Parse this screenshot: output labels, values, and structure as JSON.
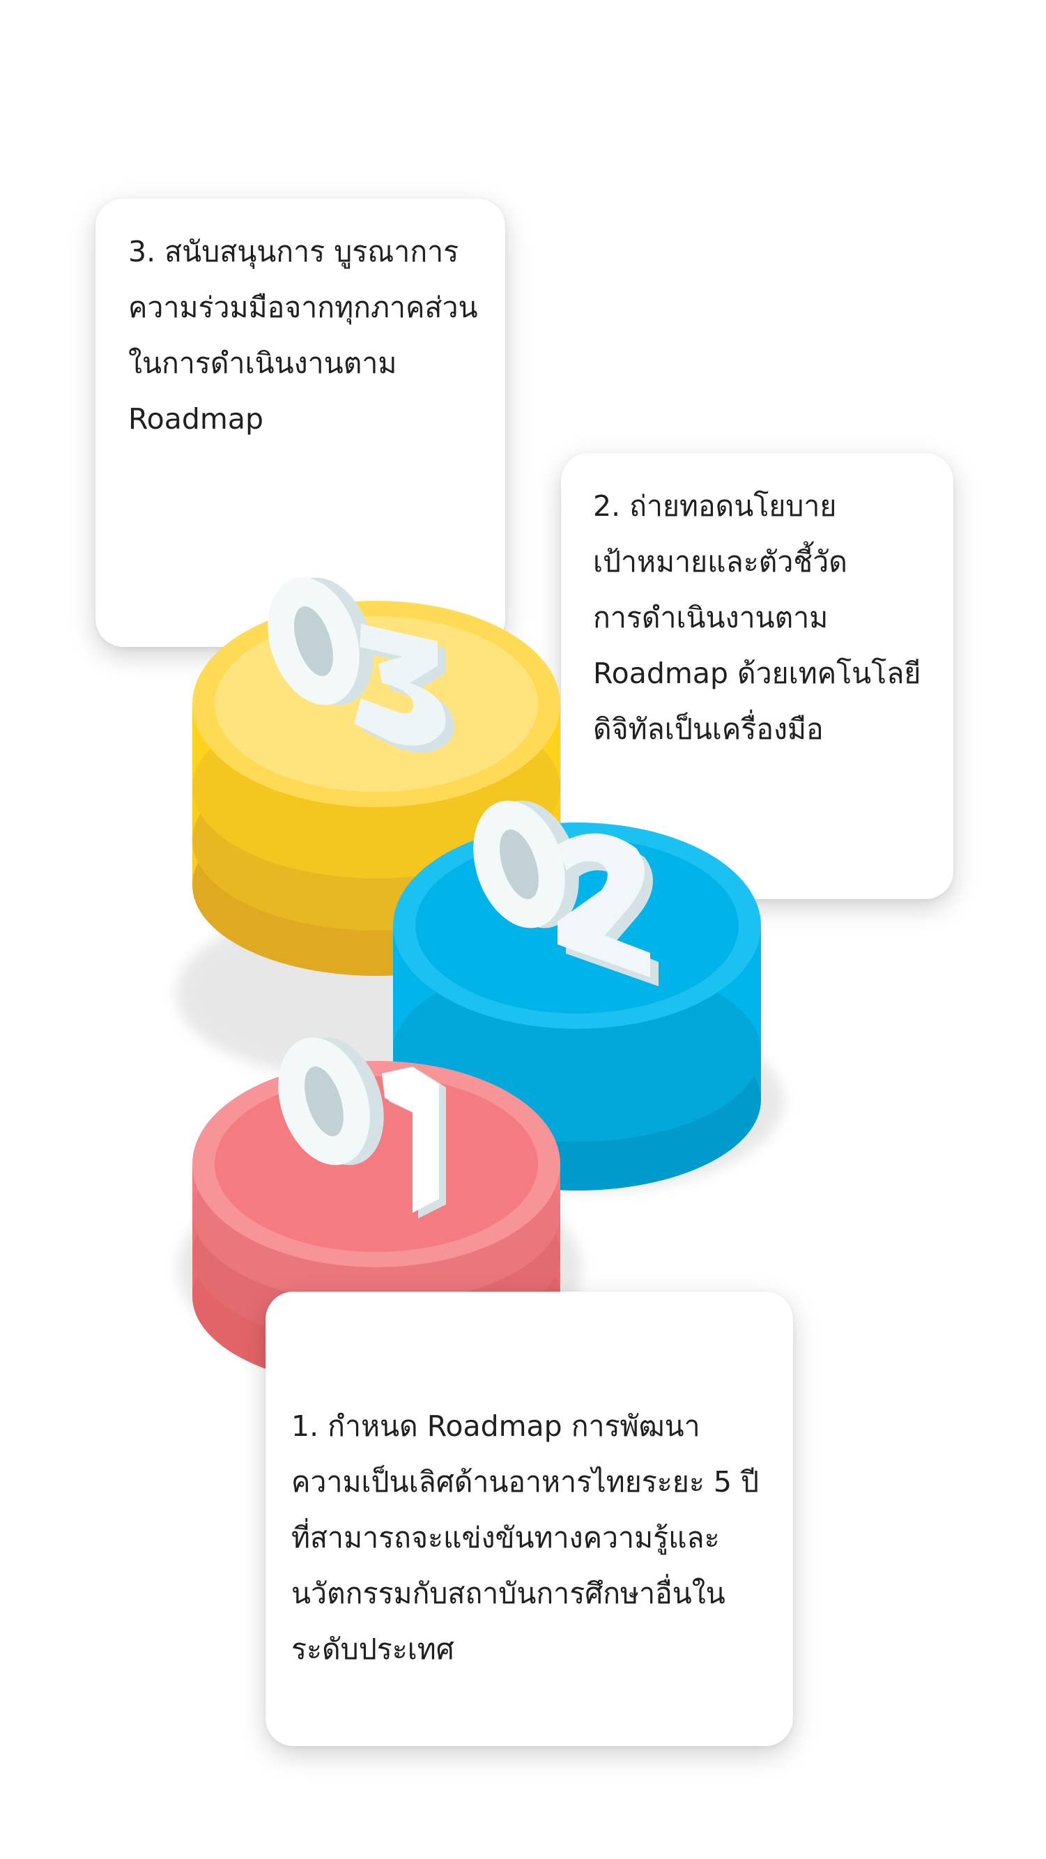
{
  "steps": [
    {
      "number": "03",
      "text": "3. สนับสนุนการ บูรณาการ\nความร่วมมือจากทุกภาคส่วน\nในการดำเนินงานตาม\nRoadmap",
      "color": "#FFD21C"
    },
    {
      "number": "02",
      "text": "2. ถ่ายทอดนโยบาย\nเป้าหมายและตัวชี้วัด\nการดำเนินงานตาม\nRoadmap ด้วยเทคโนโลยี\nดิจิทัลเป็นเครื่องมือ",
      "color": "#00B5EB"
    },
    {
      "number": "01",
      "text": "1. กำหนด Roadmap การพัฒนา\nความเป็นเลิศด้านอาหารไทยระยะ 5 ปี\nที่สามารถจะแข่งขันทางความรู้และ\nนวัตกรรมกับสถาบันการศึกษาอื่นใน\nระดับประเทศ",
      "color": "#F47C81"
    }
  ],
  "colors": {
    "card_background": "#FFFFFF",
    "text": "#1F1F1F",
    "digit_face": "#FFFFFF",
    "digit_side": "#D5E2E5"
  }
}
